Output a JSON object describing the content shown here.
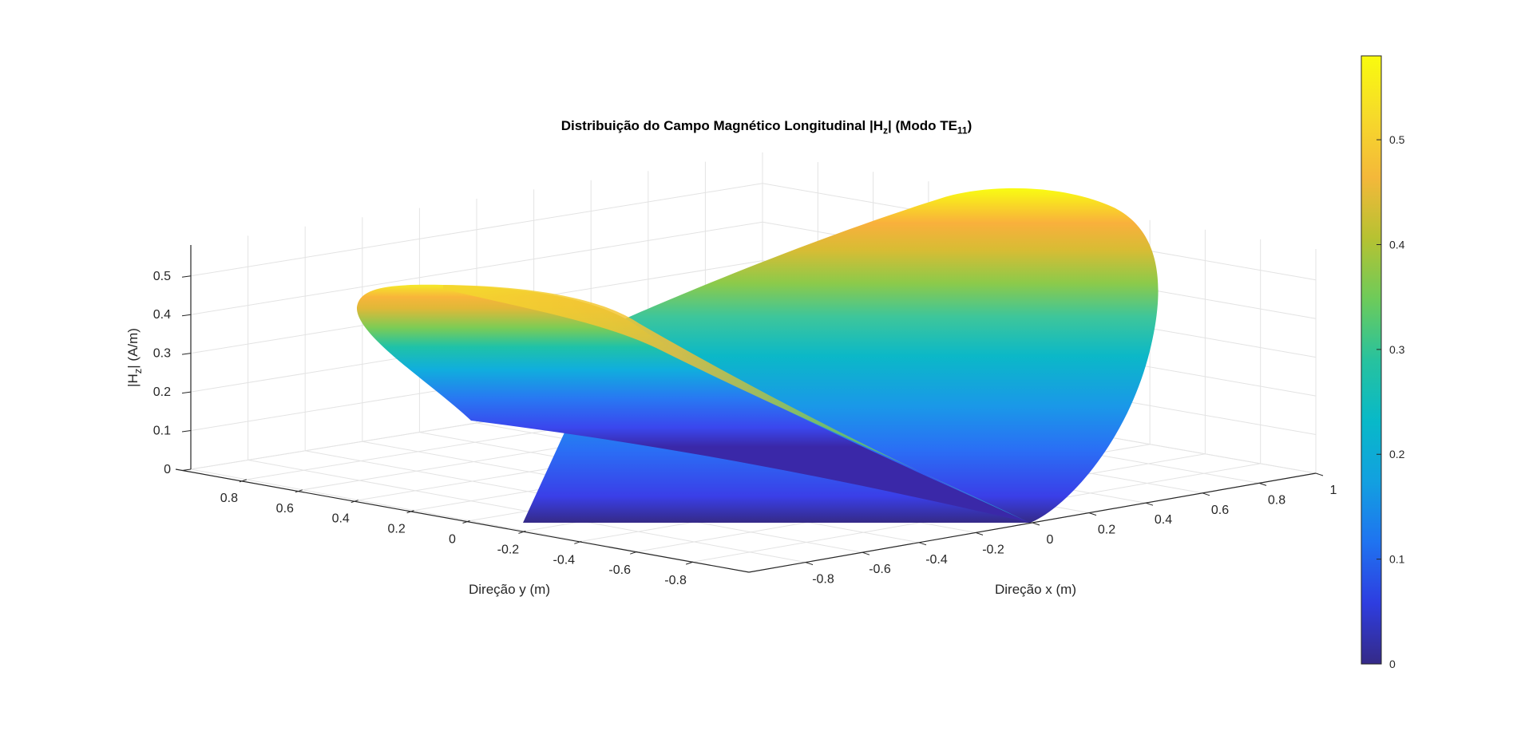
{
  "chart_data": {
    "type": "surface",
    "title_main": "Distribuição do Campo Magnético Longitudinal |H",
    "title_sub1": "z",
    "title_mid": "| (Modo TE",
    "title_sub2": "11",
    "title_end": ")",
    "xlabel": "Direção x (m)",
    "ylabel": "Direção y (m)",
    "zlabel_pre": "|H",
    "zlabel_sub": "z",
    "zlabel_post": "| (A/m)",
    "xlim": [
      -1,
      1
    ],
    "ylim": [
      -1,
      1
    ],
    "zlim": [
      0,
      0.58
    ],
    "xticks": [
      "-0.8",
      "-0.6",
      "-0.4",
      "-0.2",
      "0",
      "0.2",
      "0.4",
      "0.6",
      "0.8",
      "1"
    ],
    "yticks": [
      "0.8",
      "0.6",
      "0.4",
      "0.2",
      "0",
      "-0.2",
      "-0.4",
      "-0.6",
      "-0.8"
    ],
    "zticks": [
      "0",
      "0.1",
      "0.2",
      "0.3",
      "0.4",
      "0.5"
    ],
    "colorbar": {
      "colormap": "parula",
      "range": [
        0,
        0.58
      ],
      "ticks": [
        "0",
        "0.1",
        "0.2",
        "0.3",
        "0.4",
        "0.5"
      ]
    },
    "grid": true,
    "surface_peak": 0.58
  }
}
